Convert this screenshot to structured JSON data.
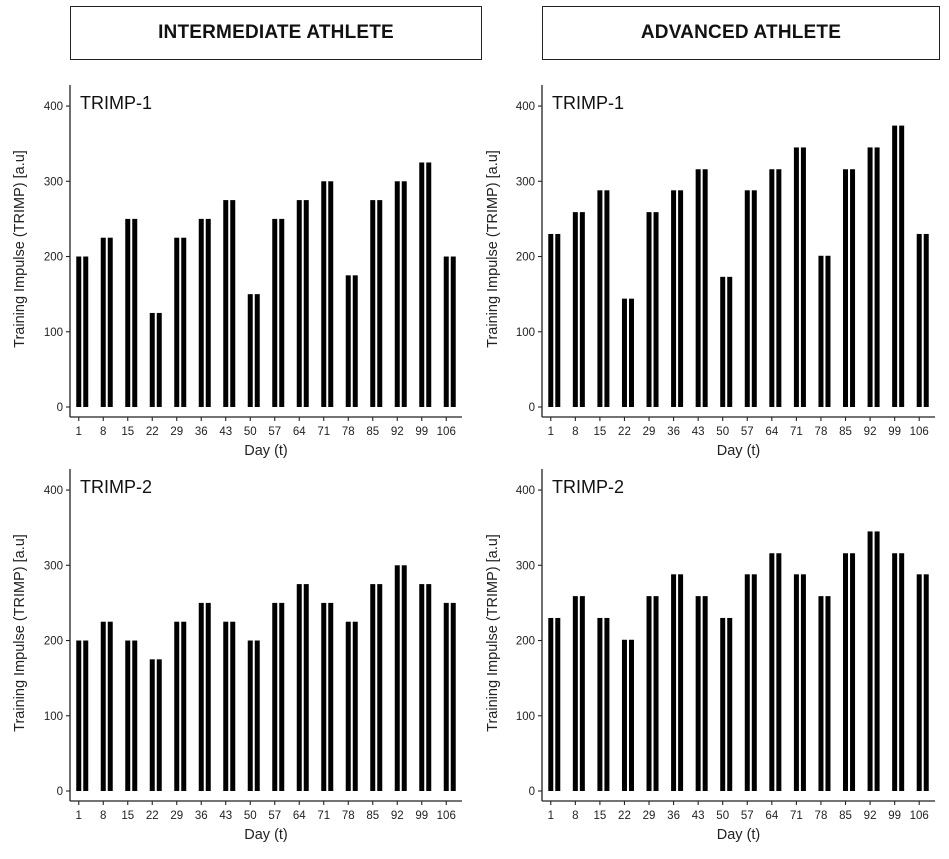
{
  "headers": {
    "left": "INTERMEDIATE ATHLETE",
    "right": "ADVANCED ATHLETE"
  },
  "chart_data": [
    {
      "type": "bar",
      "panel_label": "TRIMP-1",
      "column": "INTERMEDIATE ATHLETE",
      "x": [
        1,
        3,
        8,
        10,
        15,
        17,
        22,
        24,
        29,
        31,
        36,
        38,
        43,
        45,
        50,
        52,
        57,
        59,
        64,
        66,
        71,
        73,
        78,
        80,
        85,
        87,
        92,
        94,
        99,
        101,
        106,
        108
      ],
      "values": [
        200,
        200,
        225,
        225,
        250,
        250,
        125,
        125,
        225,
        225,
        250,
        250,
        275,
        275,
        150,
        150,
        250,
        250,
        275,
        275,
        300,
        300,
        175,
        175,
        275,
        275,
        300,
        300,
        325,
        325,
        200,
        200
      ],
      "x_ticks": [
        1,
        8,
        15,
        22,
        29,
        36,
        43,
        50,
        57,
        64,
        71,
        78,
        85,
        92,
        99,
        106
      ],
      "y_ticks": [
        0,
        100,
        200,
        300,
        400
      ],
      "xlabel": "Day (t)",
      "ylabel": "Training Impulse (TRIMP) [a.u]",
      "ylim": [
        0,
        420
      ],
      "xlim": [
        -1.5,
        110.5
      ],
      "grid": false,
      "bar_color": "#000000"
    },
    {
      "type": "bar",
      "panel_label": "TRIMP-1",
      "column": "ADVANCED ATHLETE",
      "x": [
        1,
        3,
        8,
        10,
        15,
        17,
        22,
        24,
        29,
        31,
        36,
        38,
        43,
        45,
        50,
        52,
        57,
        59,
        64,
        66,
        71,
        73,
        78,
        80,
        85,
        87,
        92,
        94,
        99,
        101,
        106,
        108
      ],
      "values": [
        230,
        230,
        259,
        259,
        288,
        288,
        144,
        144,
        259,
        259,
        288,
        288,
        316,
        316,
        173,
        173,
        288,
        288,
        316,
        316,
        345,
        345,
        201,
        201,
        316,
        316,
        345,
        345,
        374,
        374,
        230,
        230
      ],
      "x_ticks": [
        1,
        8,
        15,
        22,
        29,
        36,
        43,
        50,
        57,
        64,
        71,
        78,
        85,
        92,
        99,
        106
      ],
      "y_ticks": [
        0,
        100,
        200,
        300,
        400
      ],
      "xlabel": "Day (t)",
      "ylabel": "Training Impulse (TRIMP) [a.u]",
      "ylim": [
        0,
        420
      ],
      "xlim": [
        -1.5,
        110.5
      ],
      "grid": false,
      "bar_color": "#000000"
    },
    {
      "type": "bar",
      "panel_label": "TRIMP-2",
      "column": "INTERMEDIATE ATHLETE",
      "x": [
        1,
        3,
        8,
        10,
        15,
        17,
        22,
        24,
        29,
        31,
        36,
        38,
        43,
        45,
        50,
        52,
        57,
        59,
        64,
        66,
        71,
        73,
        78,
        80,
        85,
        87,
        92,
        94,
        99,
        101,
        106,
        108
      ],
      "values": [
        200,
        200,
        225,
        225,
        200,
        200,
        175,
        175,
        225,
        225,
        250,
        250,
        225,
        225,
        200,
        200,
        250,
        250,
        275,
        275,
        250,
        250,
        225,
        225,
        275,
        275,
        300,
        300,
        275,
        275,
        250,
        250
      ],
      "x_ticks": [
        1,
        8,
        15,
        22,
        29,
        36,
        43,
        50,
        57,
        64,
        71,
        78,
        85,
        92,
        99,
        106
      ],
      "y_ticks": [
        0,
        100,
        200,
        300,
        400
      ],
      "xlabel": "Day (t)",
      "ylabel": "Training Impulse (TRIMP) [a.u]",
      "ylim": [
        0,
        420
      ],
      "xlim": [
        -1.5,
        110.5
      ],
      "grid": false,
      "bar_color": "#000000"
    },
    {
      "type": "bar",
      "panel_label": "TRIMP-2",
      "column": "ADVANCED ATHLETE",
      "x": [
        1,
        3,
        8,
        10,
        15,
        17,
        22,
        24,
        29,
        31,
        36,
        38,
        43,
        45,
        50,
        52,
        57,
        59,
        64,
        66,
        71,
        73,
        78,
        80,
        85,
        87,
        92,
        94,
        99,
        101,
        106,
        108
      ],
      "values": [
        230,
        230,
        259,
        259,
        230,
        230,
        201,
        201,
        259,
        259,
        288,
        288,
        259,
        259,
        230,
        230,
        288,
        288,
        316,
        316,
        288,
        288,
        259,
        259,
        316,
        316,
        345,
        345,
        316,
        316,
        288,
        288
      ],
      "x_ticks": [
        1,
        8,
        15,
        22,
        29,
        36,
        43,
        50,
        57,
        64,
        71,
        78,
        85,
        92,
        99,
        106
      ],
      "y_ticks": [
        0,
        100,
        200,
        300,
        400
      ],
      "xlabel": "Day (t)",
      "ylabel": "Training Impulse (TRIMP) [a.u]",
      "ylim": [
        0,
        420
      ],
      "xlim": [
        -1.5,
        110.5
      ],
      "grid": false,
      "bar_color": "#000000"
    }
  ]
}
